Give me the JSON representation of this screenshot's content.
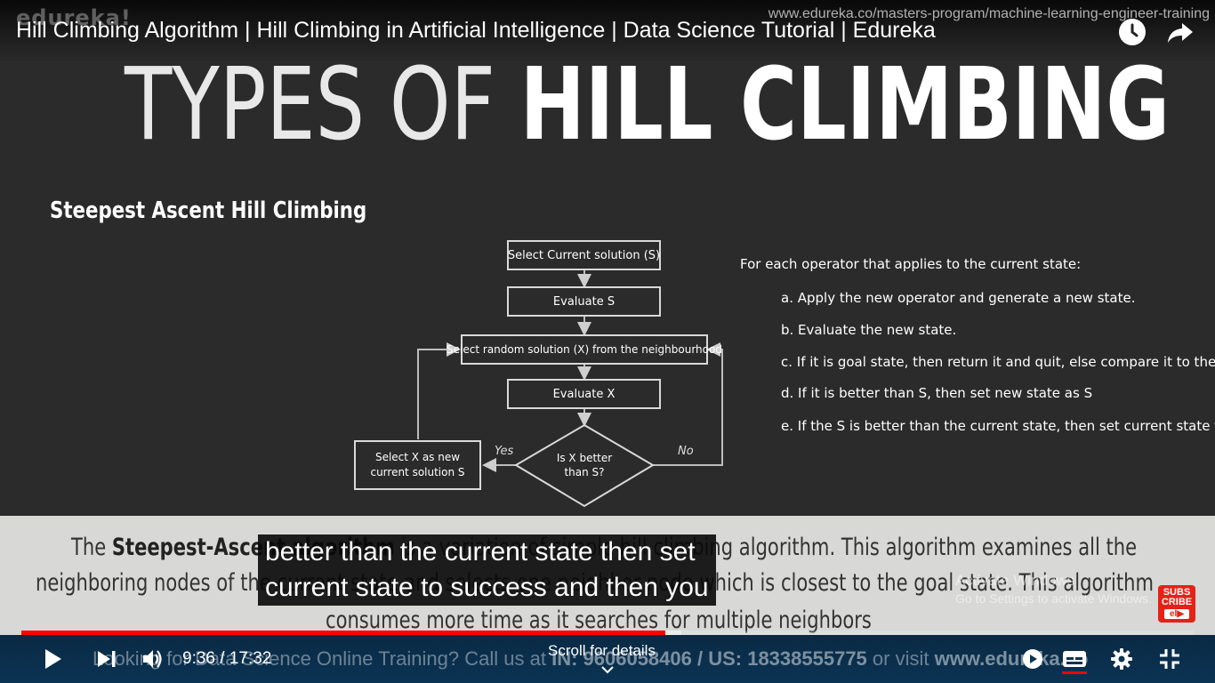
{
  "overlay": {
    "brand": "edureka!",
    "watermark_url": "www.edureka.co/masters-program/machine-learning-engineer-training",
    "video_title": "Hill Climbing Algorithm | Hill Climbing in Artificial Intelligence | Data Science Tutorial | Edureka",
    "top_icons": [
      "watch-later-icon",
      "share-icon"
    ]
  },
  "slide": {
    "heading_thin": "TYPES OF ",
    "heading_bold": "HILL CLIMBING",
    "section_title": "Steepest Ascent Hill Climbing",
    "flowchart": {
      "box_select_current": "Select Current solution (S)",
      "box_evaluate_s": "Evaluate S",
      "box_select_random": "Select random solution (X) from the neighbourhood",
      "box_evaluate_x": "Evaluate X",
      "decision": "Is X better than S?",
      "box_new_current": "Select X as new current solution S",
      "label_yes": "Yes",
      "label_no": "No"
    },
    "steps": {
      "intro": "For each operator that applies to the current state:",
      "items": [
        "a. Apply the new operator and generate a new state.",
        "b. Evaluate the new state.",
        "c. If it is goal state, then return it and quit, else compare it to the S.",
        "d. If it is better than S, then set new state as S",
        "e. If the S is better than the current state, then set current state to S."
      ]
    }
  },
  "description": {
    "line1_pre": "The ",
    "line1_bold": "Steepest-Ascent algorithm",
    "line1_post": " is a variation of simple hill climbing algorithm. This algorithm examines all the",
    "line2": "neighboring nodes of the current state and selects one neighbor node which is closest to the goal state. This algorithm",
    "line3": "consumes more time as it searches for multiple neighbors"
  },
  "windows_notice": {
    "title": "Activate Windows",
    "subtitle": "Go to Settings to activate Windows."
  },
  "subscribe": {
    "line1": "SUBS",
    "line2": "CRIBE",
    "line3": "el▶"
  },
  "captions": {
    "line1": "better than the current state then set",
    "line2": "current state to success and then you"
  },
  "progress": {
    "played_fraction": 0.5492,
    "buffered_fraction": 0.5629
  },
  "controls": {
    "time": "9:36 / 17:32",
    "scroll_hint": "Scroll for details",
    "ticker_pre": "Looking for Data Science Online Training? Call us at ",
    "ticker_bold": "IN: 9606058406 / US: 18338555775",
    "ticker_mid": " or visit ",
    "ticker_bold2": "www.edureka.co",
    "icons": [
      "play-icon",
      "next-icon",
      "volume-icon",
      "autoplay-icon",
      "captions-icon",
      "settings-icon",
      "exit-fullscreen-icon"
    ],
    "captions_accent": "#ff0000"
  }
}
